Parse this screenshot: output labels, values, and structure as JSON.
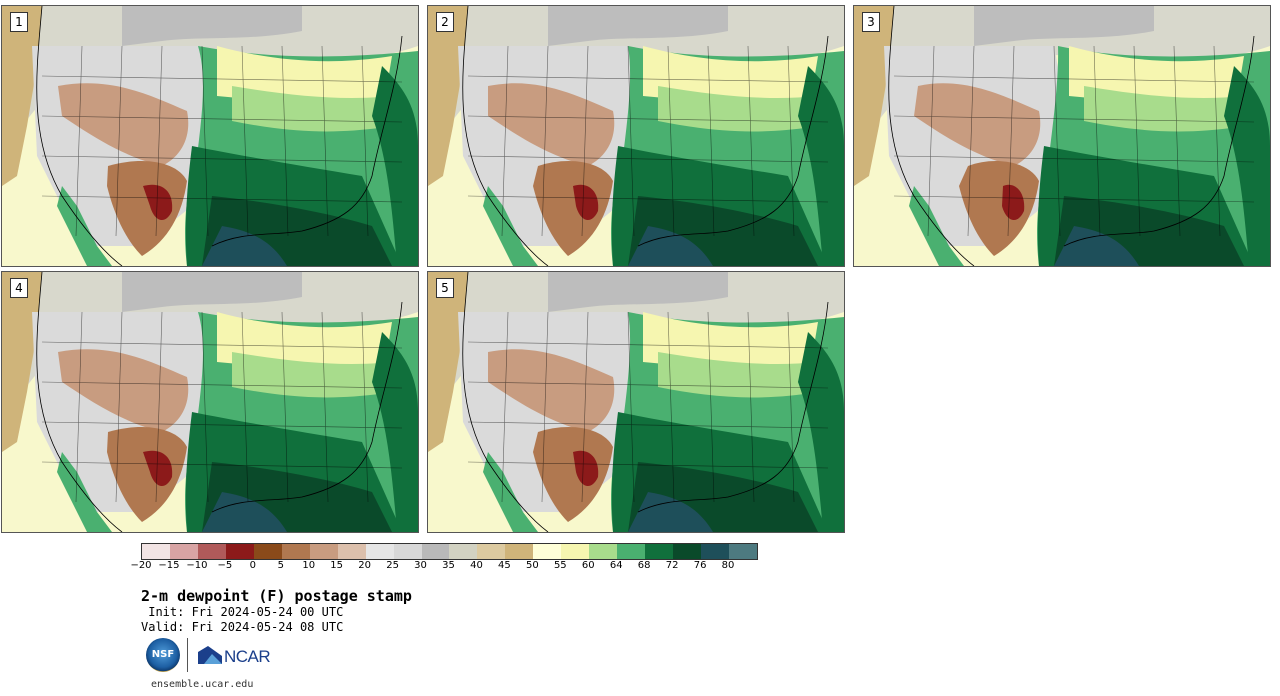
{
  "stamps": [
    {
      "label": "1"
    },
    {
      "label": "2"
    },
    {
      "label": "3"
    },
    {
      "label": "4"
    },
    {
      "label": "5"
    }
  ],
  "colorbar": {
    "colors": [
      "#f2e4e4",
      "#d8a4a4",
      "#b05a5a",
      "#8c1a1a",
      "#8a4a1a",
      "#b07850",
      "#c89c80",
      "#dcc0ac",
      "#e6e6e6",
      "#d8d8d8",
      "#b9b9b9",
      "#d2d2c2",
      "#dccaa0",
      "#cfb47a",
      "#ffffd8",
      "#f6f6b0",
      "#a8dc8c",
      "#4ab070",
      "#10703c",
      "#0a4a2a",
      "#1e4f5a",
      "#4d7a80"
    ],
    "tick_labels": [
      "−20",
      "−15",
      "−10",
      "−5",
      "0",
      "5",
      "10",
      "15",
      "20",
      "25",
      "30",
      "35",
      "40",
      "45",
      "50",
      "55",
      "60",
      "64",
      "68",
      "72",
      "76",
      "80"
    ]
  },
  "title": "2-m dewpoint (F) postage stamp",
  "init": " Init: Fri 2024-05-24 00 UTC",
  "valid": "Valid: Fri 2024-05-24 08 UTC",
  "logos": {
    "nsf": "NSF",
    "ncar": "NCAR"
  },
  "url": "ensemble.ucar.edu"
}
